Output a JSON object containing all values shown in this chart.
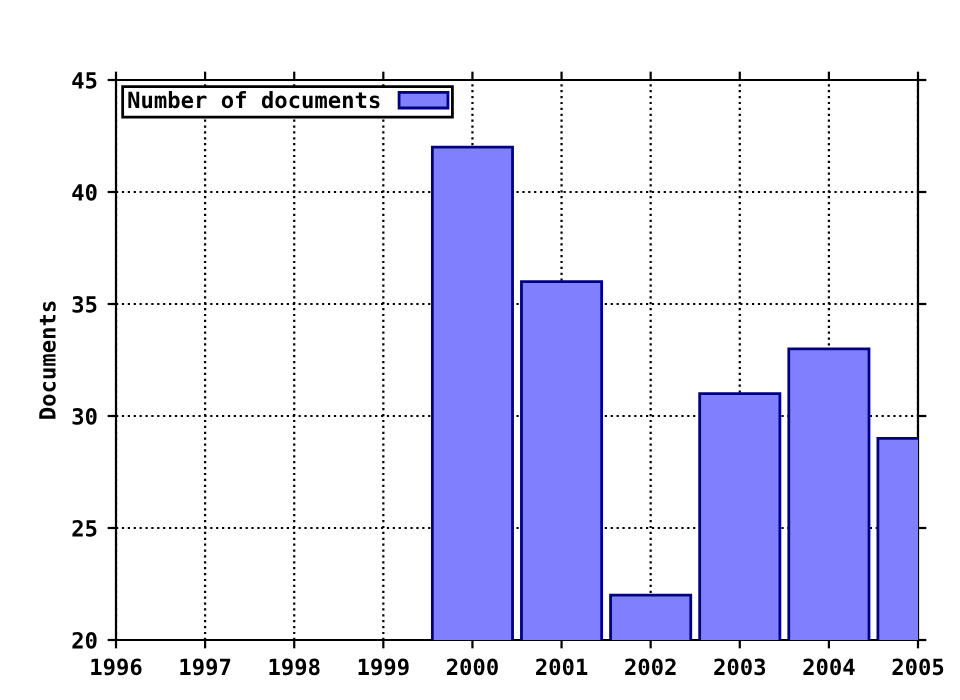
{
  "chart_data": {
    "type": "bar",
    "ylabel": "Documents",
    "x": [
      2000,
      2001,
      2002,
      2003,
      2004,
      2005
    ],
    "series": [
      {
        "name": "Number of documents",
        "color": "#8080ff",
        "values": [
          42,
          36,
          22,
          31,
          33,
          29
        ]
      }
    ],
    "xlim": [
      1996,
      2005
    ],
    "xticks": [
      1996,
      1997,
      1998,
      1999,
      2000,
      2001,
      2002,
      2003,
      2004,
      2005
    ],
    "ylim": [
      20,
      45
    ],
    "yticks": [
      20,
      25,
      30,
      35,
      40,
      45
    ],
    "grid": true,
    "line_style": "dotted",
    "legend": "top left"
  }
}
